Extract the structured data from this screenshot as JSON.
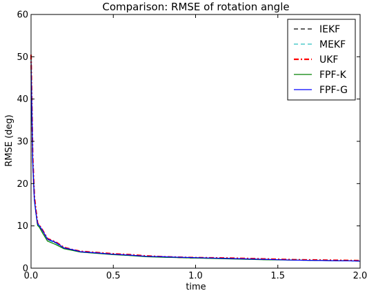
{
  "chart_data": {
    "type": "line",
    "title": "Comparison: RMSE of rotation angle",
    "xlabel": "time",
    "ylabel": "RMSE (deg)",
    "xlim": [
      0.0,
      2.0
    ],
    "ylim": [
      0,
      60
    ],
    "xticks": [
      "0.0",
      "0.5",
      "1.0",
      "1.5",
      "2.0"
    ],
    "yticks": [
      "0",
      "10",
      "20",
      "30",
      "40",
      "50",
      "60"
    ],
    "grid": false,
    "legend_position": "top-right",
    "series": [
      {
        "name": "IEKF",
        "color": "#000000",
        "dash": "dashed",
        "width": 1.2,
        "x": [
          0.0,
          0.005,
          0.01,
          0.02,
          0.03,
          0.04,
          0.05,
          0.07,
          0.1,
          0.15,
          0.2,
          0.25,
          0.3,
          0.4,
          0.5,
          0.6,
          0.7,
          0.8,
          0.9,
          1.0,
          1.2,
          1.4,
          1.6,
          1.8,
          2.0
        ],
        "y": [
          50.0,
          38.0,
          26.0,
          16.5,
          13.2,
          10.4,
          10.0,
          8.8,
          6.8,
          6.0,
          4.8,
          4.3,
          3.9,
          3.6,
          3.3,
          3.1,
          2.8,
          2.7,
          2.5,
          2.4,
          2.3,
          2.1,
          1.9,
          1.8,
          1.7
        ]
      },
      {
        "name": "MEKF",
        "color": "#29bfbf",
        "dash": "dashed",
        "width": 1.2,
        "x": [
          0.0,
          0.005,
          0.01,
          0.02,
          0.03,
          0.04,
          0.05,
          0.07,
          0.1,
          0.15,
          0.2,
          0.25,
          0.3,
          0.4,
          0.5,
          0.6,
          0.7,
          0.8,
          0.9,
          1.0,
          1.2,
          1.4,
          1.6,
          1.8,
          2.0
        ],
        "y": [
          49.5,
          37.5,
          25.8,
          16.3,
          13.0,
          10.3,
          9.9,
          8.7,
          6.7,
          5.9,
          4.7,
          4.3,
          3.8,
          3.6,
          3.3,
          3.0,
          2.8,
          2.6,
          2.5,
          2.4,
          2.3,
          2.1,
          1.9,
          1.8,
          1.7
        ]
      },
      {
        "name": "UKF",
        "color": "#ff0000",
        "dash": "dashdot",
        "width": 2.2,
        "x": [
          0.0,
          0.005,
          0.01,
          0.02,
          0.03,
          0.04,
          0.05,
          0.07,
          0.1,
          0.15,
          0.2,
          0.25,
          0.3,
          0.4,
          0.5,
          0.6,
          0.7,
          0.8,
          0.9,
          1.0,
          1.2,
          1.4,
          1.6,
          1.8,
          2.0
        ],
        "y": [
          50.5,
          38.5,
          26.5,
          17.0,
          13.5,
          10.6,
          10.2,
          9.0,
          7.0,
          6.2,
          4.9,
          4.4,
          4.0,
          3.7,
          3.4,
          3.2,
          2.9,
          2.7,
          2.6,
          2.5,
          2.4,
          2.2,
          2.0,
          1.9,
          1.8
        ]
      },
      {
        "name": "FPF-K",
        "color": "#008000",
        "dash": "solid",
        "width": 1.2,
        "x": [
          0.0,
          0.005,
          0.01,
          0.02,
          0.03,
          0.04,
          0.05,
          0.07,
          0.1,
          0.15,
          0.2,
          0.25,
          0.3,
          0.4,
          0.5,
          0.6,
          0.7,
          0.8,
          0.9,
          1.0,
          1.2,
          1.4,
          1.6,
          1.8,
          2.0
        ],
        "y": [
          47.0,
          36.0,
          25.0,
          16.0,
          12.8,
          10.1,
          9.7,
          8.3,
          6.4,
          5.6,
          4.6,
          4.2,
          3.8,
          3.5,
          3.2,
          3.0,
          2.7,
          2.6,
          2.5,
          2.4,
          2.2,
          2.0,
          1.9,
          1.8,
          1.7
        ]
      },
      {
        "name": "FPF-G",
        "color": "#0000ff",
        "dash": "solid",
        "width": 1.2,
        "x": [
          0.0,
          0.005,
          0.01,
          0.02,
          0.03,
          0.04,
          0.05,
          0.07,
          0.1,
          0.15,
          0.2,
          0.25,
          0.3,
          0.4,
          0.5,
          0.6,
          0.7,
          0.8,
          0.9,
          1.0,
          1.2,
          1.4,
          1.6,
          1.8,
          2.0
        ],
        "y": [
          49.0,
          37.0,
          25.5,
          16.2,
          13.0,
          10.5,
          10.1,
          8.9,
          6.9,
          6.1,
          4.8,
          4.4,
          3.9,
          3.6,
          3.3,
          3.1,
          2.8,
          2.7,
          2.6,
          2.5,
          2.3,
          2.1,
          1.9,
          1.8,
          1.7
        ]
      }
    ]
  }
}
